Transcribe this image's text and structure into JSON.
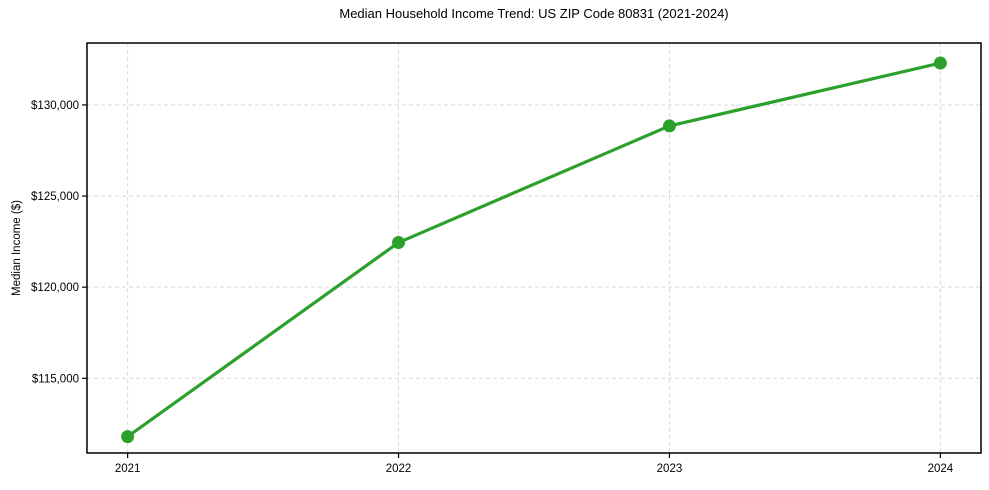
{
  "chart_data": {
    "type": "line",
    "title": "Median Household Income Trend: US ZIP Code 80831 (2021-2024)",
    "xlabel": "",
    "ylabel": "Median Income ($)",
    "categories": [
      "2021",
      "2022",
      "2023",
      "2024"
    ],
    "values": [
      111800,
      122450,
      128850,
      132300
    ],
    "yticks": [
      115000,
      120000,
      125000,
      130000
    ],
    "ytick_labels": [
      "$115,000",
      "$120,000",
      "$125,000",
      "$130,000"
    ],
    "ylim": [
      110900,
      133400
    ],
    "grid": true,
    "grid_style": "dashed",
    "legend_position": "none",
    "marker": "circle",
    "colors": {
      "line": "#2ca02c",
      "marker": "#2ca02c",
      "grid": "#d9d9d9",
      "spine": "#000000",
      "text": "#000000"
    }
  }
}
